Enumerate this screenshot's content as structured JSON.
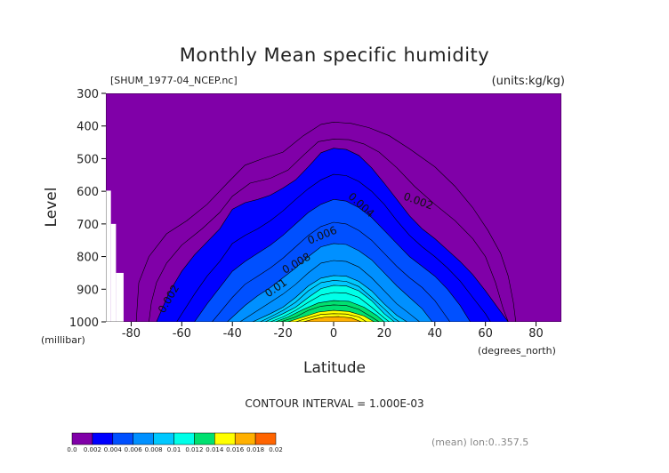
{
  "chart_data": {
    "type": "contour",
    "title": "Monthly Mean specific humidity",
    "subtitle": "[SHUM_1977-04_NCEP.nc]",
    "units": "(units:kg/kg)",
    "xlabel": "Latitude",
    "x_units": "(degrees_north)",
    "ylabel": "Level",
    "y_units": "(millibar)",
    "xlim": [
      -90,
      90
    ],
    "ylim": [
      1000,
      300
    ],
    "x_ticks": [
      "-80",
      "-60",
      "-40",
      "-20",
      "0",
      "20",
      "40",
      "60",
      "80"
    ],
    "x_tick_values": [
      -80,
      -60,
      -40,
      -20,
      0,
      20,
      40,
      60,
      80
    ],
    "y_ticks": [
      "300",
      "400",
      "500",
      "600",
      "700",
      "800",
      "900",
      "1000"
    ],
    "y_tick_values": [
      300,
      400,
      500,
      600,
      700,
      800,
      900,
      1000
    ],
    "contour_interval_text": "CONTOUR INTERVAL = 1.000E-03",
    "mean_note": "(mean) lon:0..357.5",
    "contour_labels": [
      {
        "text": "0.002",
        "lat": 33,
        "level": 640,
        "angle": 20
      },
      {
        "text": "0.004",
        "lat": 10,
        "level": 650,
        "angle": 42
      },
      {
        "text": "0.006",
        "lat": -4,
        "level": 745,
        "angle": -22
      },
      {
        "text": "0.008",
        "lat": -14,
        "level": 830,
        "angle": -30
      },
      {
        "text": "0.01",
        "lat": -22,
        "level": 905,
        "angle": -35
      },
      {
        "text": "0.002",
        "lat": -64,
        "level": 935,
        "angle": -60
      }
    ],
    "missing_data_steps": [
      {
        "lat0": -90,
        "lat1": -88,
        "level_top": 598
      },
      {
        "lat0": -88,
        "lat1": -86,
        "level_top": 700
      },
      {
        "lat0": -86,
        "lat1": -83,
        "level_top": 850
      }
    ],
    "fill_profiles": [
      {
        "level": 0.002,
        "points": [
          [
            -70,
            1000
          ],
          [
            -65,
            910
          ],
          [
            -60,
            845
          ],
          [
            -55,
            795
          ],
          [
            -50,
            755
          ],
          [
            -45,
            715
          ],
          [
            -40,
            655
          ],
          [
            -35,
            635
          ],
          [
            -30,
            625
          ],
          [
            -25,
            612
          ],
          [
            -20,
            590
          ],
          [
            -15,
            565
          ],
          [
            -10,
            525
          ],
          [
            -5,
            482
          ],
          [
            0,
            468
          ],
          [
            5,
            472
          ],
          [
            10,
            490
          ],
          [
            15,
            528
          ],
          [
            20,
            575
          ],
          [
            25,
            625
          ],
          [
            30,
            675
          ],
          [
            35,
            715
          ],
          [
            40,
            745
          ],
          [
            45,
            780
          ],
          [
            50,
            815
          ],
          [
            55,
            855
          ],
          [
            60,
            905
          ],
          [
            65,
            958
          ],
          [
            69,
            1000
          ]
        ]
      },
      {
        "level": 0.003,
        "points": [
          [
            -62,
            1000
          ],
          [
            -55,
            915
          ],
          [
            -50,
            860
          ],
          [
            -45,
            815
          ],
          [
            -40,
            760
          ],
          [
            -35,
            735
          ],
          [
            -30,
            715
          ],
          [
            -25,
            690
          ],
          [
            -20,
            660
          ],
          [
            -15,
            625
          ],
          [
            -10,
            592
          ],
          [
            -5,
            565
          ],
          [
            0,
            548
          ],
          [
            5,
            552
          ],
          [
            10,
            570
          ],
          [
            15,
            600
          ],
          [
            20,
            640
          ],
          [
            25,
            690
          ],
          [
            30,
            735
          ],
          [
            35,
            770
          ],
          [
            40,
            800
          ],
          [
            45,
            835
          ],
          [
            50,
            875
          ],
          [
            55,
            925
          ],
          [
            60,
            975
          ],
          [
            62,
            1000
          ]
        ]
      },
      {
        "level": 0.004,
        "points": [
          [
            -55,
            1000
          ],
          [
            -50,
            945
          ],
          [
            -45,
            895
          ],
          [
            -40,
            845
          ],
          [
            -35,
            815
          ],
          [
            -30,
            790
          ],
          [
            -25,
            765
          ],
          [
            -20,
            735
          ],
          [
            -15,
            700
          ],
          [
            -10,
            665
          ],
          [
            -5,
            640
          ],
          [
            0,
            625
          ],
          [
            5,
            630
          ],
          [
            10,
            650
          ],
          [
            15,
            680
          ],
          [
            20,
            720
          ],
          [
            25,
            760
          ],
          [
            30,
            800
          ],
          [
            35,
            830
          ],
          [
            40,
            860
          ],
          [
            45,
            900
          ],
          [
            50,
            950
          ],
          [
            54,
            1000
          ]
        ]
      },
      {
        "level": 0.005,
        "points": [
          [
            -48,
            1000
          ],
          [
            -40,
            925
          ],
          [
            -35,
            885
          ],
          [
            -30,
            860
          ],
          [
            -25,
            835
          ],
          [
            -20,
            805
          ],
          [
            -15,
            770
          ],
          [
            -10,
            735
          ],
          [
            -5,
            708
          ],
          [
            0,
            695
          ],
          [
            5,
            700
          ],
          [
            10,
            720
          ],
          [
            15,
            750
          ],
          [
            20,
            790
          ],
          [
            25,
            830
          ],
          [
            30,
            865
          ],
          [
            35,
            895
          ],
          [
            40,
            935
          ],
          [
            46,
            1000
          ]
        ]
      },
      {
        "level": 0.006,
        "points": [
          [
            -42,
            1000
          ],
          [
            -35,
            950
          ],
          [
            -30,
            920
          ],
          [
            -25,
            895
          ],
          [
            -20,
            865
          ],
          [
            -15,
            835
          ],
          [
            -10,
            800
          ],
          [
            -5,
            770
          ],
          [
            0,
            760
          ],
          [
            5,
            763
          ],
          [
            10,
            782
          ],
          [
            15,
            810
          ],
          [
            20,
            850
          ],
          [
            25,
            890
          ],
          [
            30,
            925
          ],
          [
            35,
            960
          ],
          [
            39,
            1000
          ]
        ]
      },
      {
        "level": 0.007,
        "points": [
          [
            -37,
            1000
          ],
          [
            -30,
            965
          ],
          [
            -25,
            940
          ],
          [
            -20,
            915
          ],
          [
            -15,
            885
          ],
          [
            -10,
            850
          ],
          [
            -5,
            820
          ],
          [
            0,
            812
          ],
          [
            5,
            815
          ],
          [
            10,
            832
          ],
          [
            15,
            865
          ],
          [
            20,
            905
          ],
          [
            25,
            945
          ],
          [
            30,
            975
          ],
          [
            34,
            1000
          ]
        ]
      },
      {
        "level": 0.008,
        "points": [
          [
            -32,
            1000
          ],
          [
            -25,
            975
          ],
          [
            -20,
            955
          ],
          [
            -15,
            925
          ],
          [
            -10,
            890
          ],
          [
            -5,
            866
          ],
          [
            0,
            858
          ],
          [
            5,
            860
          ],
          [
            10,
            876
          ],
          [
            15,
            905
          ],
          [
            20,
            945
          ],
          [
            25,
            980
          ],
          [
            29,
            1000
          ]
        ]
      },
      {
        "level": 0.009,
        "points": [
          [
            -29,
            1000
          ],
          [
            -25,
            985
          ],
          [
            -20,
            965
          ],
          [
            -15,
            940
          ],
          [
            -10,
            905
          ],
          [
            -5,
            880
          ],
          [
            0,
            873
          ],
          [
            5,
            876
          ],
          [
            10,
            892
          ],
          [
            15,
            925
          ],
          [
            20,
            960
          ],
          [
            24,
            990
          ],
          [
            26,
            1000
          ]
        ]
      },
      {
        "level": 0.01,
        "points": [
          [
            -27,
            1000
          ],
          [
            -20,
            975
          ],
          [
            -15,
            955
          ],
          [
            -10,
            925
          ],
          [
            -5,
            898
          ],
          [
            0,
            888
          ],
          [
            5,
            890
          ],
          [
            10,
            905
          ],
          [
            15,
            935
          ],
          [
            20,
            975
          ],
          [
            24,
            1000
          ]
        ]
      },
      {
        "level": 0.011,
        "points": [
          [
            -25,
            1000
          ],
          [
            -20,
            985
          ],
          [
            -15,
            965
          ],
          [
            -10,
            940
          ],
          [
            -5,
            918
          ],
          [
            0,
            910
          ],
          [
            5,
            912
          ],
          [
            10,
            925
          ],
          [
            15,
            955
          ],
          [
            20,
            988
          ],
          [
            22,
            1000
          ]
        ]
      },
      {
        "level": 0.012,
        "points": [
          [
            -23,
            1000
          ],
          [
            -18,
            985
          ],
          [
            -12,
            962
          ],
          [
            -6,
            942
          ],
          [
            0,
            935
          ],
          [
            6,
            937
          ],
          [
            12,
            955
          ],
          [
            17,
            980
          ],
          [
            20,
            1000
          ]
        ]
      },
      {
        "level": 0.013,
        "points": [
          [
            -21,
            1000
          ],
          [
            -15,
            985
          ],
          [
            -10,
            965
          ],
          [
            -5,
            952
          ],
          [
            0,
            948
          ],
          [
            5,
            950
          ],
          [
            10,
            962
          ],
          [
            15,
            985
          ],
          [
            18,
            1000
          ]
        ]
      },
      {
        "level": 0.014,
        "points": [
          [
            -18,
            1000
          ],
          [
            -12,
            985
          ],
          [
            -6,
            970
          ],
          [
            0,
            965
          ],
          [
            6,
            968
          ],
          [
            12,
            982
          ],
          [
            16,
            1000
          ]
        ]
      },
      {
        "level": 0.015,
        "points": [
          [
            -15,
            1000
          ],
          [
            -10,
            988
          ],
          [
            -5,
            977
          ],
          [
            0,
            975
          ],
          [
            5,
            976
          ],
          [
            10,
            985
          ],
          [
            13,
            1000
          ]
        ]
      },
      {
        "level": 0.016,
        "points": [
          [
            -12,
            1000
          ],
          [
            -7,
            990
          ],
          [
            -3,
            985
          ],
          [
            2,
            984
          ],
          [
            7,
            988
          ],
          [
            11,
            1000
          ]
        ]
      }
    ],
    "outer_isolines": [
      {
        "level": 0.001,
        "points": [
          [
            -73,
            1000
          ],
          [
            -72,
            940
          ],
          [
            -70,
            880
          ],
          [
            -66,
            820
          ],
          [
            -60,
            765
          ],
          [
            -52,
            715
          ],
          [
            -45,
            665
          ],
          [
            -40,
            615
          ],
          [
            -33,
            575
          ],
          [
            -25,
            560
          ],
          [
            -18,
            535
          ],
          [
            -12,
            490
          ],
          [
            -6,
            448
          ],
          [
            0,
            440
          ],
          [
            6,
            442
          ],
          [
            12,
            455
          ],
          [
            18,
            480
          ],
          [
            25,
            528
          ],
          [
            32,
            585
          ],
          [
            40,
            640
          ],
          [
            48,
            690
          ],
          [
            55,
            745
          ],
          [
            60,
            800
          ],
          [
            64,
            880
          ],
          [
            67,
            960
          ],
          [
            69,
            1000
          ]
        ]
      },
      {
        "level": 0.0005,
        "points": [
          [
            -78,
            1000
          ],
          [
            -77,
            880
          ],
          [
            -73,
            800
          ],
          [
            -66,
            730
          ],
          [
            -58,
            690
          ],
          [
            -50,
            640
          ],
          [
            -42,
            575
          ],
          [
            -35,
            520
          ],
          [
            -28,
            500
          ],
          [
            -20,
            480
          ],
          [
            -12,
            430
          ],
          [
            -5,
            395
          ],
          [
            0,
            388
          ],
          [
            7,
            392
          ],
          [
            14,
            405
          ],
          [
            22,
            430
          ],
          [
            30,
            470
          ],
          [
            40,
            525
          ],
          [
            48,
            585
          ],
          [
            55,
            650
          ],
          [
            61,
            720
          ],
          [
            66,
            790
          ],
          [
            69,
            860
          ],
          [
            71,
            940
          ],
          [
            72,
            1000
          ]
        ]
      }
    ]
  },
  "colorbar": {
    "labels": [
      "0.0",
      "0.002",
      "0.004",
      "0.006",
      "0.008",
      "0.01",
      "0.012",
      "0.014",
      "0.016",
      "0.018",
      "0.02"
    ],
    "colors": [
      "#8000a8",
      "#0000ff",
      "#0050ff",
      "#0090ff",
      "#00c8ff",
      "#00ffe8",
      "#00e070",
      "#ffff00",
      "#ffb000",
      "#ff6400",
      "#ff0000"
    ]
  },
  "palette": {
    "background": "#8000a8",
    "missing": "#ffffff",
    "level_colors": {
      "0.002": "#0000ff",
      "0.004": "#0050ff",
      "0.006": "#0090ff",
      "0.008": "#00c8ff",
      "0.010": "#00ffe8",
      "0.012": "#00e070",
      "0.014": "#ffff00",
      "0.016": "#ffb000",
      "0.018": "#ff6400"
    }
  }
}
